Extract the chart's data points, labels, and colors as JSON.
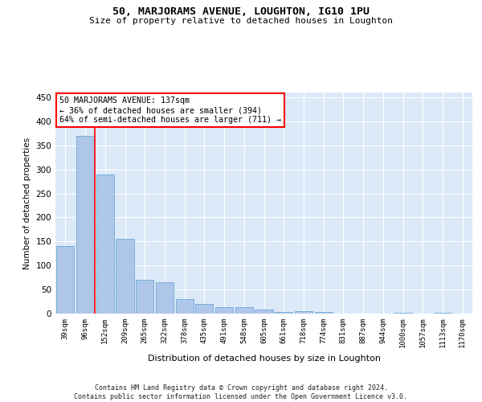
{
  "title": "50, MARJORAMS AVENUE, LOUGHTON, IG10 1PU",
  "subtitle": "Size of property relative to detached houses in Loughton",
  "xlabel": "Distribution of detached houses by size in Loughton",
  "ylabel": "Number of detached properties",
  "categories": [
    "39sqm",
    "96sqm",
    "152sqm",
    "209sqm",
    "265sqm",
    "322sqm",
    "378sqm",
    "435sqm",
    "491sqm",
    "548sqm",
    "605sqm",
    "661sqm",
    "718sqm",
    "774sqm",
    "831sqm",
    "887sqm",
    "944sqm",
    "1000sqm",
    "1057sqm",
    "1113sqm",
    "1170sqm"
  ],
  "values": [
    140,
    370,
    290,
    155,
    70,
    65,
    30,
    20,
    14,
    13,
    8,
    3,
    5,
    4,
    0,
    0,
    0,
    2,
    0,
    2,
    0
  ],
  "bar_color": "#aec6e8",
  "bar_edge_color": "#5a9fd4",
  "annotation_text": "50 MARJORAMS AVENUE: 137sqm\n← 36% of detached houses are smaller (394)\n64% of semi-detached houses are larger (711) →",
  "annotation_box_color": "white",
  "annotation_box_edge": "red",
  "vline_color": "red",
  "plot_bg": "#dce9f8",
  "footer_text": "Contains HM Land Registry data © Crown copyright and database right 2024.\nContains public sector information licensed under the Open Government Licence v3.0.",
  "ylim": [
    0,
    460
  ],
  "yticks": [
    0,
    50,
    100,
    150,
    200,
    250,
    300,
    350,
    400,
    450
  ],
  "vline_x": 1.5,
  "figsize": [
    6.0,
    5.0
  ],
  "dpi": 100
}
